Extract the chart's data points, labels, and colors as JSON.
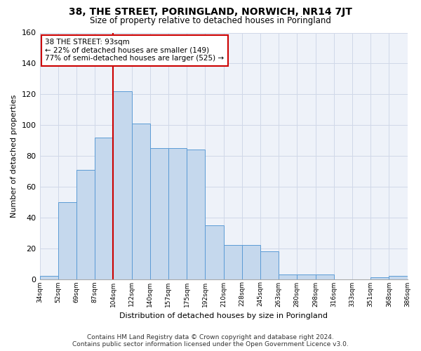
{
  "title": "38, THE STREET, PORINGLAND, NORWICH, NR14 7JT",
  "subtitle": "Size of property relative to detached houses in Poringland",
  "xlabel": "Distribution of detached houses by size in Poringland",
  "ylabel": "Number of detached properties",
  "bar_values": [
    2,
    50,
    71,
    92,
    122,
    101,
    85,
    85,
    84,
    35,
    22,
    22,
    18,
    3,
    3,
    3,
    0,
    0,
    1,
    2
  ],
  "bar_labels": [
    "34sqm",
    "52sqm",
    "69sqm",
    "87sqm",
    "104sqm",
    "122sqm",
    "140sqm",
    "157sqm",
    "175sqm",
    "192sqm",
    "210sqm",
    "228sqm",
    "245sqm",
    "263sqm",
    "280sqm",
    "298sqm",
    "316sqm",
    "333sqm",
    "351sqm",
    "368sqm",
    "386sqm"
  ],
  "bar_color": "#c5d8ed",
  "bar_edge_color": "#5b9bd5",
  "grid_color": "#d0d8e8",
  "background_color": "#eef2f9",
  "annotation_text": "38 THE STREET: 93sqm\n← 22% of detached houses are smaller (149)\n77% of semi-detached houses are larger (525) →",
  "annotation_box_color": "#ffffff",
  "annotation_border_color": "#cc0000",
  "vline_color": "#cc0000",
  "ylim": [
    0,
    160
  ],
  "yticks": [
    0,
    20,
    40,
    60,
    80,
    100,
    120,
    140,
    160
  ],
  "footer_line1": "Contains HM Land Registry data © Crown copyright and database right 2024.",
  "footer_line2": "Contains public sector information licensed under the Open Government Licence v3.0."
}
